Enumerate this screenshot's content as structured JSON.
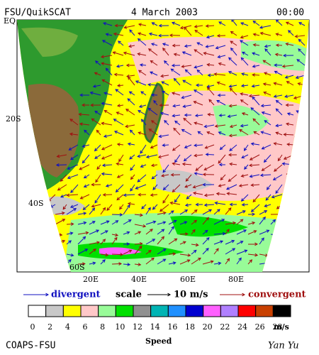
{
  "header": {
    "source": "FSU/QuikSCAT",
    "date": "4 March 2003",
    "time": "00:00"
  },
  "lat_labels": [
    "EQ",
    "20S",
    "40S",
    "60S"
  ],
  "lon_labels": [
    "20E",
    "40E",
    "60E",
    "80E"
  ],
  "legend": {
    "divergent": "divergent",
    "scale": "scale",
    "scale_value": "10 m/s",
    "convergent": "convergent",
    "divergent_color": "#1010c0",
    "convergent_color": "#a01010"
  },
  "colorbar": {
    "labels": [
      0,
      2,
      4,
      6,
      8,
      10,
      12,
      14,
      16,
      18,
      20,
      22,
      24,
      26,
      28
    ],
    "unit": "m/s",
    "title": "Speed",
    "colors": [
      "#ffffff",
      "#c8c8c8",
      "#ffff00",
      "#ffc8c8",
      "#98fb98",
      "#00e000",
      "#909090",
      "#00b4b4",
      "#2090ff",
      "#0000d0",
      "#ff60ff",
      "#b080ff",
      "#ff0000",
      "#c84000",
      "#000000"
    ]
  },
  "footer": {
    "left": "COAPS-FSU",
    "right": "Yan Yu"
  }
}
